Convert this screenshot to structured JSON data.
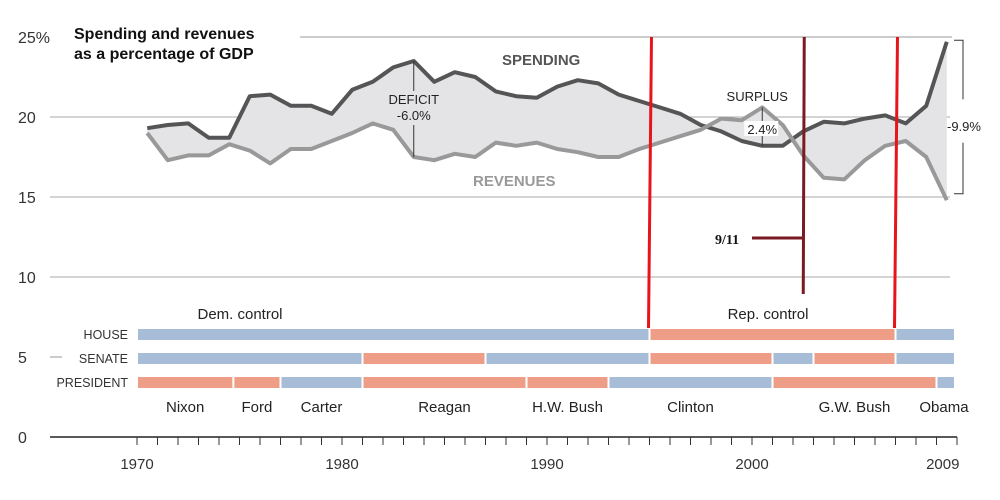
{
  "chart_data": {
    "type": "line",
    "title": "Spending and revenues as a percentage of GDP",
    "y_unit": "%",
    "ylim": [
      0,
      25
    ],
    "y_ticks": [
      "25%",
      "20",
      "15",
      "10",
      "5",
      "0"
    ],
    "x_range": [
      1970,
      2010
    ],
    "x_tick_labels": [
      "1970",
      "1980",
      "1990",
      "2000",
      "2009"
    ],
    "grid": true,
    "x": [
      1970,
      1971,
      1972,
      1973,
      1974,
      1975,
      1976,
      1977,
      1978,
      1979,
      1980,
      1981,
      1982,
      1983,
      1984,
      1985,
      1986,
      1987,
      1988,
      1989,
      1990,
      1991,
      1992,
      1993,
      1994,
      1995,
      1996,
      1997,
      1998,
      1999,
      2000,
      2001,
      2002,
      2003,
      2004,
      2005,
      2006,
      2007,
      2008,
      2009
    ],
    "series": [
      {
        "name": "SPENDING",
        "color": "#555555",
        "values": [
          19.3,
          19.5,
          19.6,
          18.7,
          18.7,
          21.3,
          21.4,
          20.7,
          20.7,
          20.2,
          21.7,
          22.2,
          23.1,
          23.5,
          22.2,
          22.8,
          22.5,
          21.6,
          21.3,
          21.2,
          21.9,
          22.3,
          22.1,
          21.4,
          21.0,
          20.6,
          20.2,
          19.5,
          19.1,
          18.5,
          18.2,
          18.2,
          19.1,
          19.7,
          19.6,
          19.9,
          20.1,
          19.6,
          20.7,
          24.7
        ]
      },
      {
        "name": "REVENUES",
        "color": "#999999",
        "values": [
          19.0,
          17.3,
          17.6,
          17.6,
          18.3,
          17.9,
          17.1,
          18.0,
          18.0,
          18.5,
          19.0,
          19.6,
          19.2,
          17.5,
          17.3,
          17.7,
          17.5,
          18.4,
          18.2,
          18.4,
          18.0,
          17.8,
          17.5,
          17.5,
          18.0,
          18.4,
          18.8,
          19.2,
          19.9,
          19.8,
          20.6,
          19.5,
          17.6,
          16.2,
          16.1,
          17.3,
          18.2,
          18.5,
          17.5,
          14.8
        ]
      }
    ],
    "fill_color": "#e4e4e6",
    "annotations": [
      {
        "label": "DEFICIT",
        "value": "-6.0%",
        "year": 1983
      },
      {
        "label": "SURPLUS",
        "value": "2.4%",
        "year": 2000
      },
      {
        "label": "",
        "value": "-9.9%",
        "year": 2009
      },
      {
        "label": "9/11",
        "year": 2002.5,
        "color": "#7a1a22"
      }
    ],
    "markers": [
      {
        "year": 1995,
        "color": "#e8141c"
      },
      {
        "year": 2007,
        "color": "#e8141c"
      }
    ],
    "control": {
      "dem_label": "Dem. control",
      "rep_label": "Rep. control",
      "dem_color": "#a7bcd6",
      "rep_color": "#ee9e87",
      "rows": [
        {
          "label": "HOUSE",
          "segments": [
            {
              "from": 1970,
              "to": 1995,
              "party": "D"
            },
            {
              "from": 1995,
              "to": 2007,
              "party": "R"
            },
            {
              "from": 2007,
              "to": 2010,
              "party": "D"
            }
          ]
        },
        {
          "label": "SENATE",
          "segments": [
            {
              "from": 1970,
              "to": 1981,
              "party": "D"
            },
            {
              "from": 1981,
              "to": 1987,
              "party": "R"
            },
            {
              "from": 1987,
              "to": 1995,
              "party": "D"
            },
            {
              "from": 1995,
              "to": 2001,
              "party": "R"
            },
            {
              "from": 2001,
              "to": 2003,
              "party": "D"
            },
            {
              "from": 2003,
              "to": 2007,
              "party": "R"
            },
            {
              "from": 2007,
              "to": 2010,
              "party": "D"
            }
          ]
        },
        {
          "label": "PRESIDENT",
          "segments": [
            {
              "from": 1970,
              "to": 1974.7,
              "party": "R",
              "name": "Nixon"
            },
            {
              "from": 1974.7,
              "to": 1977,
              "party": "R",
              "name": "Ford"
            },
            {
              "from": 1977,
              "to": 1981,
              "party": "D",
              "name": "Carter"
            },
            {
              "from": 1981,
              "to": 1989,
              "party": "R",
              "name": "Reagan"
            },
            {
              "from": 1989,
              "to": 1993,
              "party": "R",
              "name": "H.W. Bush"
            },
            {
              "from": 1993,
              "to": 2001,
              "party": "D",
              "name": "Clinton"
            },
            {
              "from": 2001,
              "to": 2009,
              "party": "R",
              "name": "G.W. Bush"
            },
            {
              "from": 2009,
              "to": 2010,
              "party": "D",
              "name": "Obama"
            }
          ]
        }
      ]
    }
  }
}
